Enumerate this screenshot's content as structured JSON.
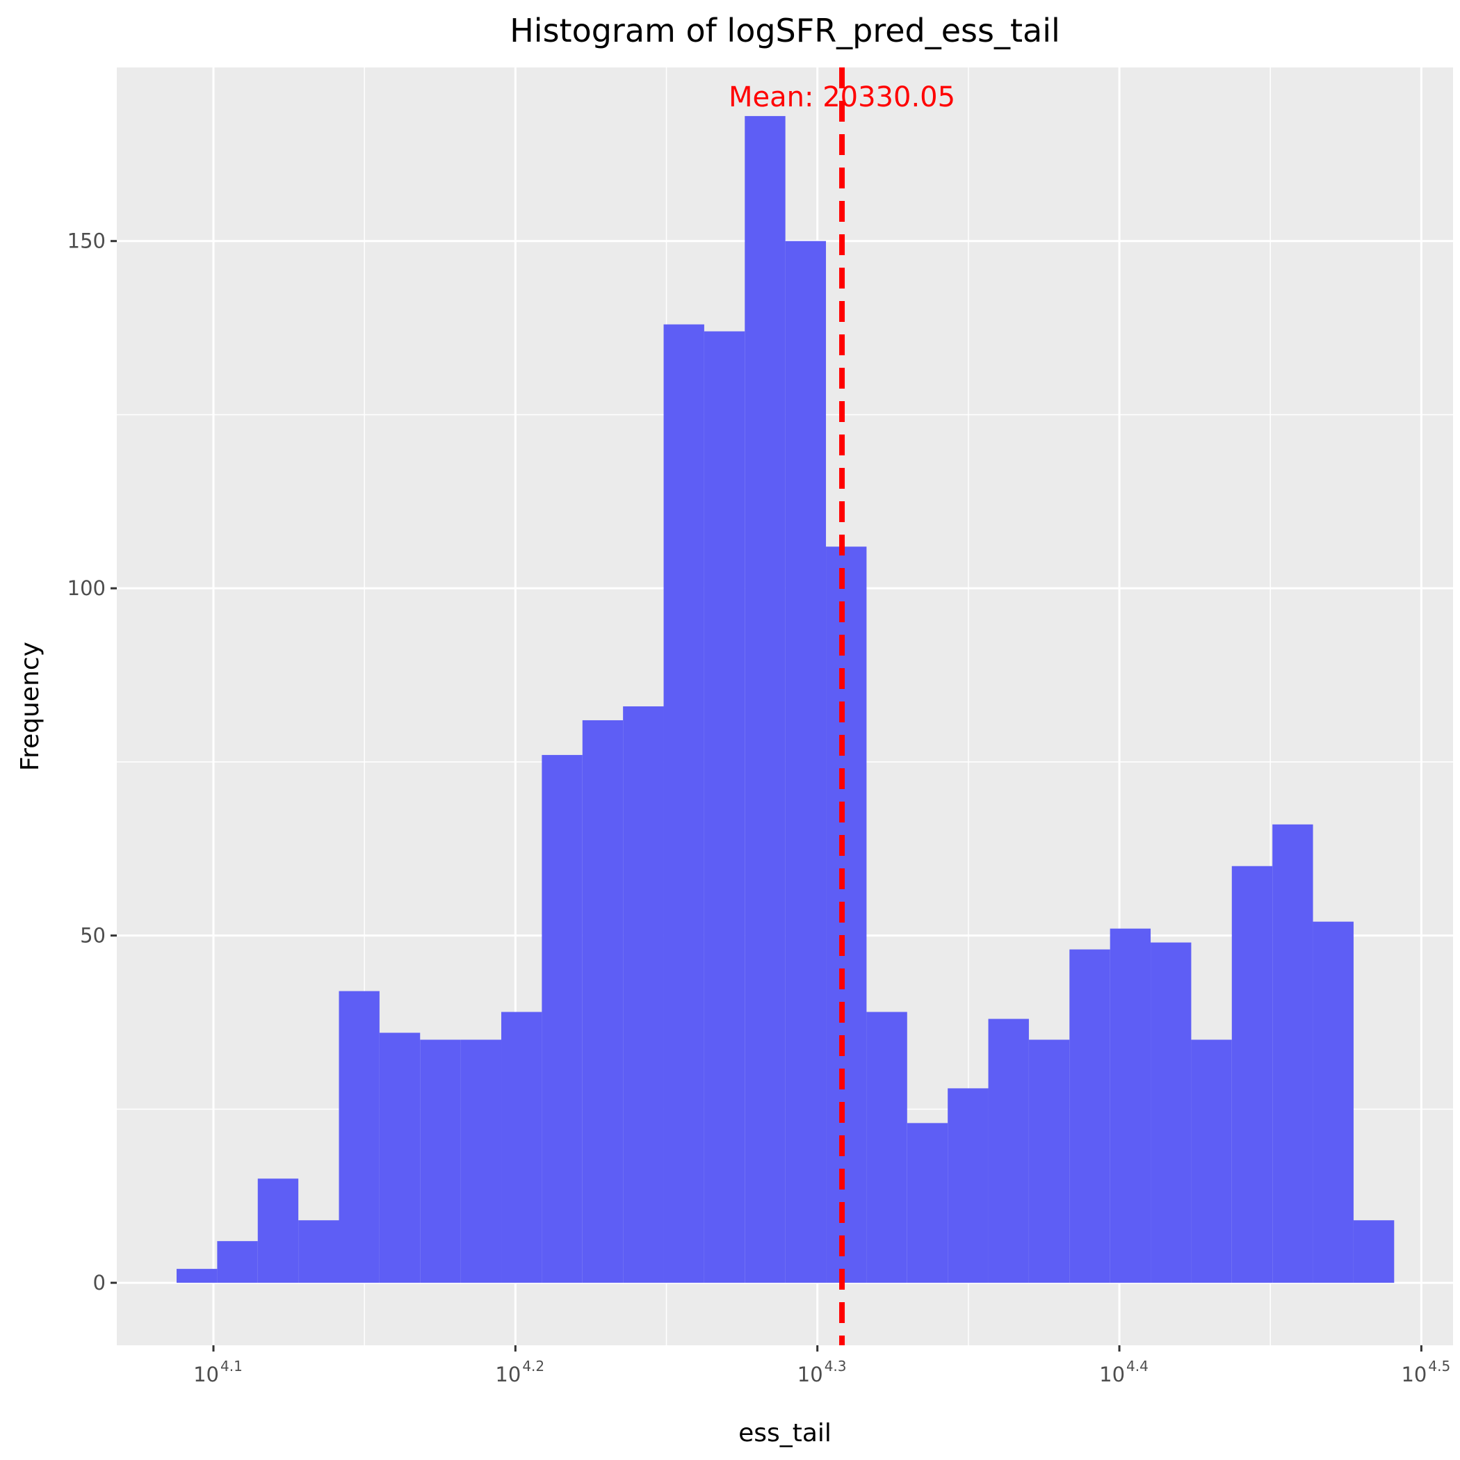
{
  "chart_data": {
    "type": "bar",
    "title": "Histogram of logSFR_pred_ess_tail",
    "xlabel": "ess_tail",
    "ylabel": "Frequency",
    "x_scale": "log10",
    "xlim_log10": [
      4.068,
      4.5105
    ],
    "ylim": [
      -9,
      175
    ],
    "x_ticks": [
      {
        "base": "10",
        "exp": "4.1",
        "value": 4.1
      },
      {
        "base": "10",
        "exp": "4.2",
        "value": 4.2
      },
      {
        "base": "10",
        "exp": "4.3",
        "value": 4.3
      },
      {
        "base": "10",
        "exp": "4.4",
        "value": 4.4
      },
      {
        "base": "10",
        "exp": "4.5",
        "value": 4.5
      }
    ],
    "y_ticks": [
      {
        "label": "0",
        "value": 0
      },
      {
        "label": "50",
        "value": 50
      },
      {
        "label": "100",
        "value": 100
      },
      {
        "label": "150",
        "value": 150
      }
    ],
    "bin_start_log10": 4.0878,
    "bin_width_log10": 0.01344,
    "values": [
      2,
      6,
      15,
      9,
      42,
      36,
      35,
      35,
      39,
      76,
      81,
      83,
      138,
      137,
      168,
      150,
      106,
      39,
      23,
      28,
      38,
      35,
      48,
      51,
      49,
      35,
      60,
      66,
      52,
      9
    ],
    "bar_color": "#5e5ef5",
    "mean": {
      "value": 20330.05,
      "label": "Mean: 20330.05",
      "color": "#ff0000",
      "line_style": "dashed"
    },
    "grid": true,
    "panel_background": "#ebebeb"
  }
}
